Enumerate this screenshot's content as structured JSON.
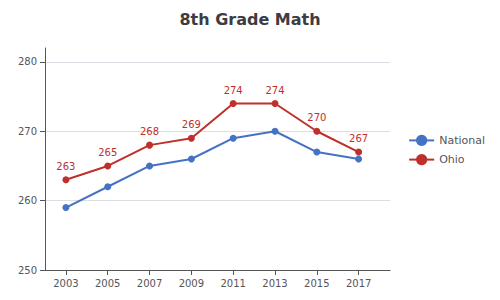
{
  "chart_data": {
    "type": "line",
    "title": "8th Grade Math",
    "x": [
      2003,
      2005,
      2007,
      2009,
      2011,
      2013,
      2015,
      2017
    ],
    "series": [
      {
        "name": "National",
        "color": "#4472C4",
        "marker": "o",
        "values": [
          259,
          262,
          265,
          266,
          269,
          270,
          267,
          266
        ]
      },
      {
        "name": "Ohio",
        "color": "#C0302A",
        "marker": "o",
        "data_labels": true,
        "values": [
          263,
          265,
          268,
          269,
          274,
          274,
          270,
          267
        ]
      }
    ],
    "xlim": [
      2002,
      2018.5
    ],
    "xticks": [
      2003,
      2005,
      2007,
      2009,
      2011,
      2013,
      2015,
      2017
    ],
    "ylim": [
      250,
      282
    ],
    "yticks": [
      250,
      260,
      270,
      280
    ],
    "grid": true,
    "legend": "right"
  }
}
